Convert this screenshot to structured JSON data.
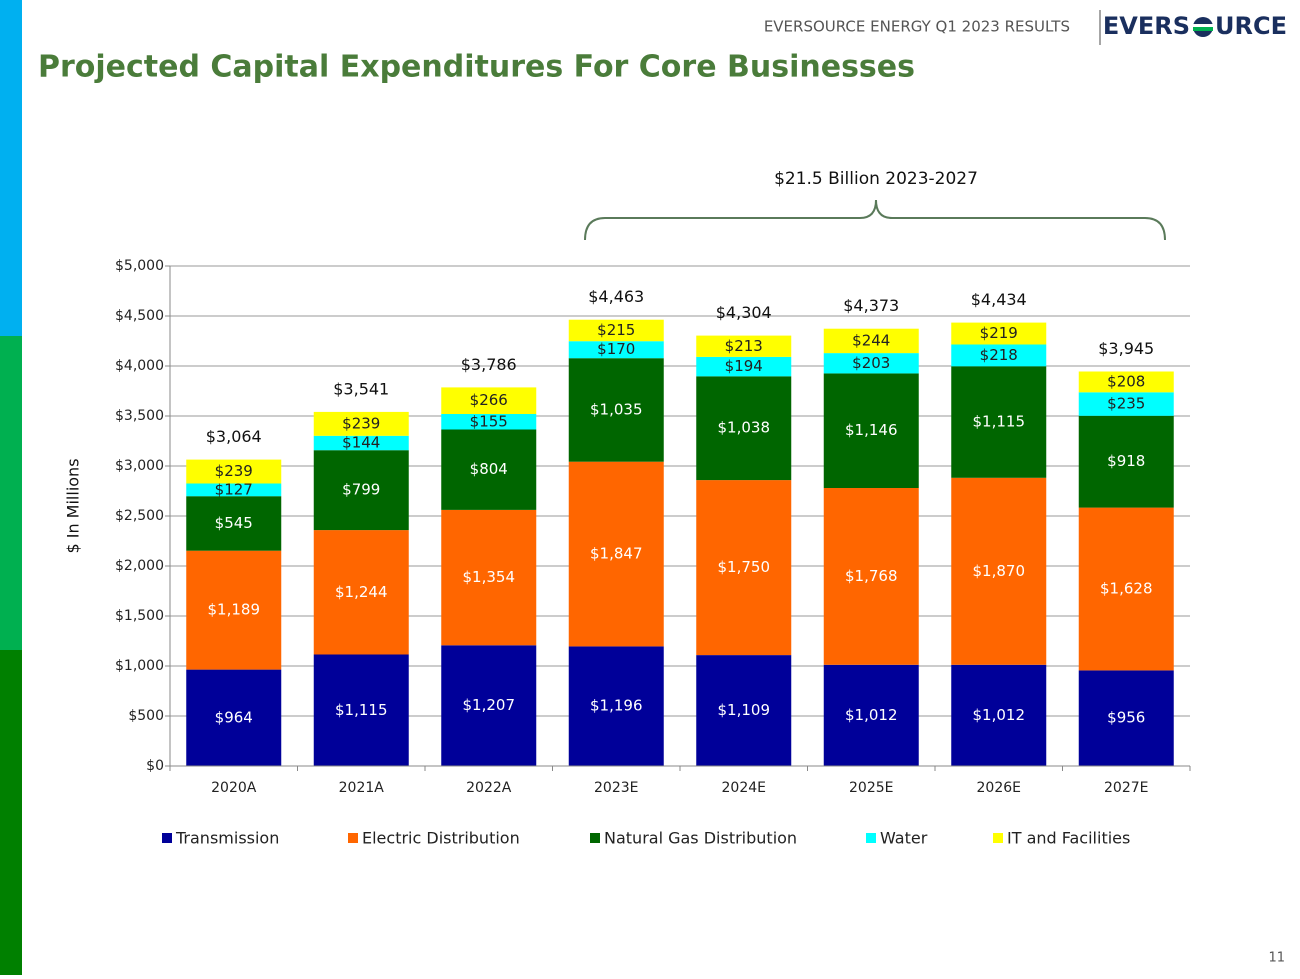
{
  "header": {
    "report": "EVERSOURCE ENERGY Q1 2023 RESULTS",
    "logo_left": "EVERS",
    "logo_right": "URCE",
    "page_number": "11"
  },
  "chart_data": {
    "type": "stacked_bar",
    "title": "Projected Capital Expenditures For Core Businesses",
    "annotation": "$21.5 Billion 2023-2027",
    "y_label": "$ In Millions",
    "categories": [
      "2020A",
      "2021A",
      "2022A",
      "2023E",
      "2024E",
      "2025E",
      "2026E",
      "2027E"
    ],
    "series": [
      {
        "name": "Transmission",
        "color": "#000099",
        "label_color": "#ffffff",
        "values": [
          964,
          1115,
          1207,
          1196,
          1109,
          1012,
          1012,
          956
        ],
        "value_labels": [
          "$964",
          "$1,115",
          "$1,207",
          "$1,196",
          "$1,109",
          "$1,012",
          "$1,012",
          "$956"
        ]
      },
      {
        "name": "Electric Distribution",
        "color": "#ff6600",
        "label_color": "#ffffff",
        "values": [
          1189,
          1244,
          1354,
          1847,
          1750,
          1768,
          1870,
          1628
        ],
        "value_labels": [
          "$1,189",
          "$1,244",
          "$1,354",
          "$1,847",
          "$1,750",
          "$1,768",
          "$1,870",
          "$1,628"
        ]
      },
      {
        "name": "Natural Gas Distribution",
        "color": "#006600",
        "label_color": "#ffffff",
        "values": [
          545,
          799,
          804,
          1035,
          1038,
          1146,
          1115,
          918
        ],
        "value_labels": [
          "$545",
          "$799",
          "$804",
          "$1,035",
          "$1,038",
          "$1,146",
          "$1,115",
          "$918"
        ]
      },
      {
        "name": "Water",
        "color": "#00ffff",
        "label_color": "#222222",
        "values": [
          127,
          144,
          155,
          170,
          194,
          203,
          218,
          235
        ],
        "value_labels": [
          "$127",
          "$144",
          "$155",
          "$170",
          "$194",
          "$203",
          "$218",
          "$235"
        ]
      },
      {
        "name": "IT and Facilities",
        "color": "#ffff00",
        "label_color": "#222222",
        "values": [
          239,
          239,
          266,
          215,
          213,
          244,
          219,
          208
        ],
        "value_labels": [
          "$239",
          "$239",
          "$266",
          "$215",
          "$213",
          "$244",
          "$219",
          "$208"
        ]
      }
    ],
    "totals": {
      "values": [
        3064,
        3541,
        3786,
        4463,
        4304,
        4373,
        4434,
        3945
      ],
      "value_labels": [
        "$3,064",
        "$3,541",
        "$3,786",
        "$4,463",
        "$4,304",
        "$4,373",
        "$4,434",
        "$3,945"
      ]
    },
    "ylim": [
      0,
      5000
    ],
    "yticks": [
      {
        "value": 0,
        "label": "$0"
      },
      {
        "value": 500,
        "label": "$500"
      },
      {
        "value": 1000,
        "label": "$1,000"
      },
      {
        "value": 1500,
        "label": "$1,500"
      },
      {
        "value": 2000,
        "label": "$2,000"
      },
      {
        "value": 2500,
        "label": "$2,500"
      },
      {
        "value": 3000,
        "label": "$3,000"
      },
      {
        "value": 3500,
        "label": "$3,500"
      },
      {
        "value": 4000,
        "label": "$4,000"
      },
      {
        "value": 4500,
        "label": "$4,500"
      },
      {
        "value": 5000,
        "label": "$5,000"
      }
    ],
    "grid": true,
    "legend": "bottom"
  }
}
